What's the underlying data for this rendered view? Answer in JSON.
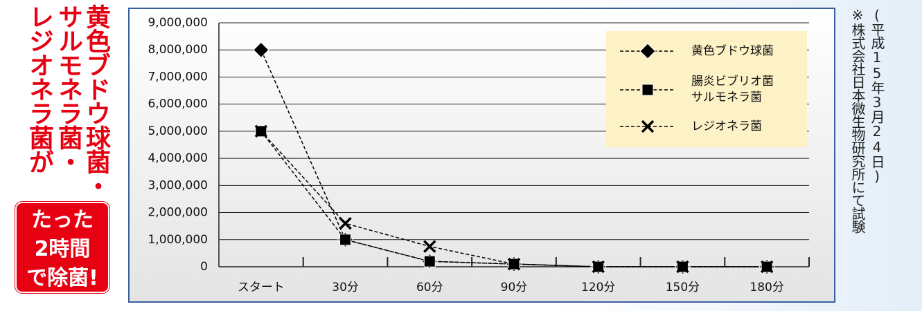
{
  "headline": {
    "columns": [
      "黄色ブドウ球菌・",
      "サルモネラ菌・",
      "レジオネラ菌が"
    ],
    "badge": [
      "たった",
      "2時間",
      "で除菌!"
    ]
  },
  "chart_data": {
    "type": "line",
    "categories": [
      "スタート",
      "30分",
      "60分",
      "90分",
      "120分",
      "150分",
      "180分"
    ],
    "series": [
      {
        "name": "黄色ブドウ球菌",
        "color": "#000000",
        "marker": "diamond",
        "values": [
          8000000,
          1000000,
          200000,
          100000,
          0,
          0,
          0
        ]
      },
      {
        "name": "腸炎ビブリオ菌\nサルモネラ菌",
        "color": "#000000",
        "marker": "square",
        "values": [
          5000000,
          1000000,
          200000,
          100000,
          0,
          0,
          0
        ]
      },
      {
        "name": "レジオネラ菌",
        "color": "#000000",
        "marker": "x",
        "values": [
          5000000,
          1600000,
          750000,
          100000,
          0,
          0,
          0
        ]
      }
    ],
    "ylim": [
      0,
      9000000
    ],
    "yticks": [
      0,
      {
        "value": 1000000,
        "label": "1,000,000"
      },
      {
        "value": 2000000,
        "label": "2,000,000"
      },
      {
        "value": 3000000,
        "label": "3,000,000"
      },
      {
        "value": 4000000,
        "label": "4,000,000"
      },
      {
        "value": 5000000,
        "label": "5,000,000"
      },
      {
        "value": 6000000,
        "label": "6,000,000"
      },
      {
        "value": 7000000,
        "label": "7,000,000"
      },
      {
        "value": 8000000,
        "label": "8,000,000"
      },
      {
        "value": 9000000,
        "label": "9,000,000"
      }
    ],
    "grid": true,
    "legend": "upper right"
  },
  "note": {
    "date": "(平成15年3月24日)",
    "source": "※株式会社日本微生物研究所にて試験"
  }
}
